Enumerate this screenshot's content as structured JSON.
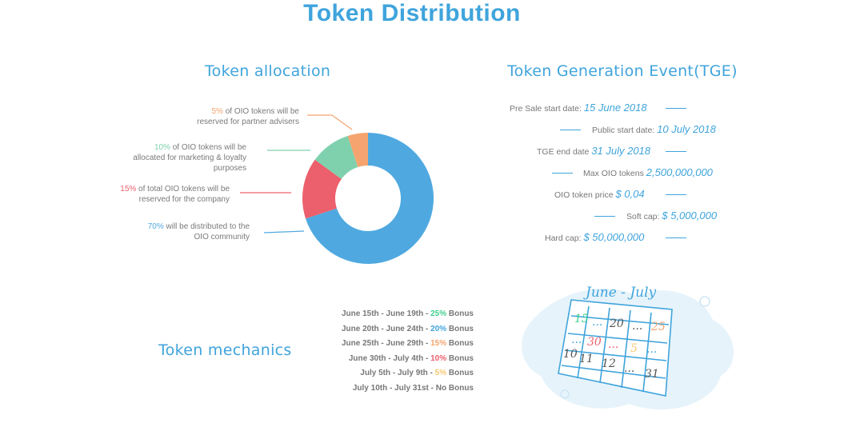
{
  "page": {
    "title": "Token Distribution"
  },
  "allocation": {
    "title": "Token allocation",
    "labels": [
      {
        "pct": "5%",
        "text": "of OIO tokens will be reserved for partner advisers",
        "line1_rest": " of OIO tokens will be",
        "line2": "reserved for partner advisers",
        "color": "#f5a46f"
      },
      {
        "pct": "10%",
        "text": "of OIO tokens will be allocated for marketing & loyalty purposes",
        "line1_rest": " of OIO tokens will be",
        "line2": "allocated for marketing & loyalty",
        "line3": "purposes",
        "color": "#7fd1ae"
      },
      {
        "pct": "15%",
        "text": "of total OIO tokens will be reserved for the company",
        "line1_rest": " of total OIO tokens will be",
        "line2": "reserved for the company",
        "color": "#ec5f6c"
      },
      {
        "pct": "70%",
        "text": "will be distributed to the OIO community",
        "line1_rest": " will be distributed to the",
        "line2": "OIO community",
        "color": "#4fa9e0"
      }
    ]
  },
  "chart_data": {
    "type": "pie",
    "donut": true,
    "categories": [
      "Partner advisers",
      "Marketing & loyalty",
      "Company",
      "OIO community"
    ],
    "values": [
      5,
      10,
      15,
      70
    ],
    "colors": [
      "#f5a46f",
      "#7fd1ae",
      "#ec5f6c",
      "#4fa9e0"
    ]
  },
  "tge": {
    "title": "Token Generation Event(TGE)",
    "rows": [
      {
        "label": "Pre Sale start date:",
        "value": "15 June 2018"
      },
      {
        "label": "Public start date:",
        "value": "10 July 2018"
      },
      {
        "label": "TGE end date",
        "value": "31 July 2018"
      },
      {
        "label": "Max OIO tokens",
        "value": "2,500,000,000"
      },
      {
        "label": "OIO token price",
        "value": "$ 0,04"
      },
      {
        "label": "Soft cap:",
        "value": "$ 5,000,000"
      },
      {
        "label": "Hard cap:",
        "value": "$ 50,000,000"
      }
    ],
    "accent": "#3fa4dc"
  },
  "mechanics": {
    "title": "Token mechanics",
    "rows": [
      {
        "period": "June 15th - June 19th - ",
        "bonus": "25%",
        "suffix": " Bonus",
        "color": "#3fcf8e"
      },
      {
        "period": "June 20th - June 24th - ",
        "bonus": "20%",
        "suffix": " Bonus",
        "color": "#3fa4dc"
      },
      {
        "period": "June 25th - June 29th - ",
        "bonus": "15%",
        "suffix": " Bonus",
        "color": "#f5a46f"
      },
      {
        "period": "June 30th - July 4th - ",
        "bonus": "10%",
        "suffix": " Bonus",
        "color": "#ec5f6c"
      },
      {
        "period": "July 5th - July 9th - ",
        "bonus": "5%",
        "suffix": " Bonus",
        "color": "#f5c86f"
      },
      {
        "period": "July 10th - July 31st - ",
        "bonus": "",
        "suffix": "No Bonus",
        "color": "#777777"
      }
    ]
  },
  "calendar": {
    "heading": "June - July",
    "cells": [
      "15",
      "...",
      "20",
      "...",
      "25",
      "...",
      "30",
      "...",
      "5",
      "...",
      "10",
      "11",
      "12",
      "...",
      "31"
    ]
  }
}
